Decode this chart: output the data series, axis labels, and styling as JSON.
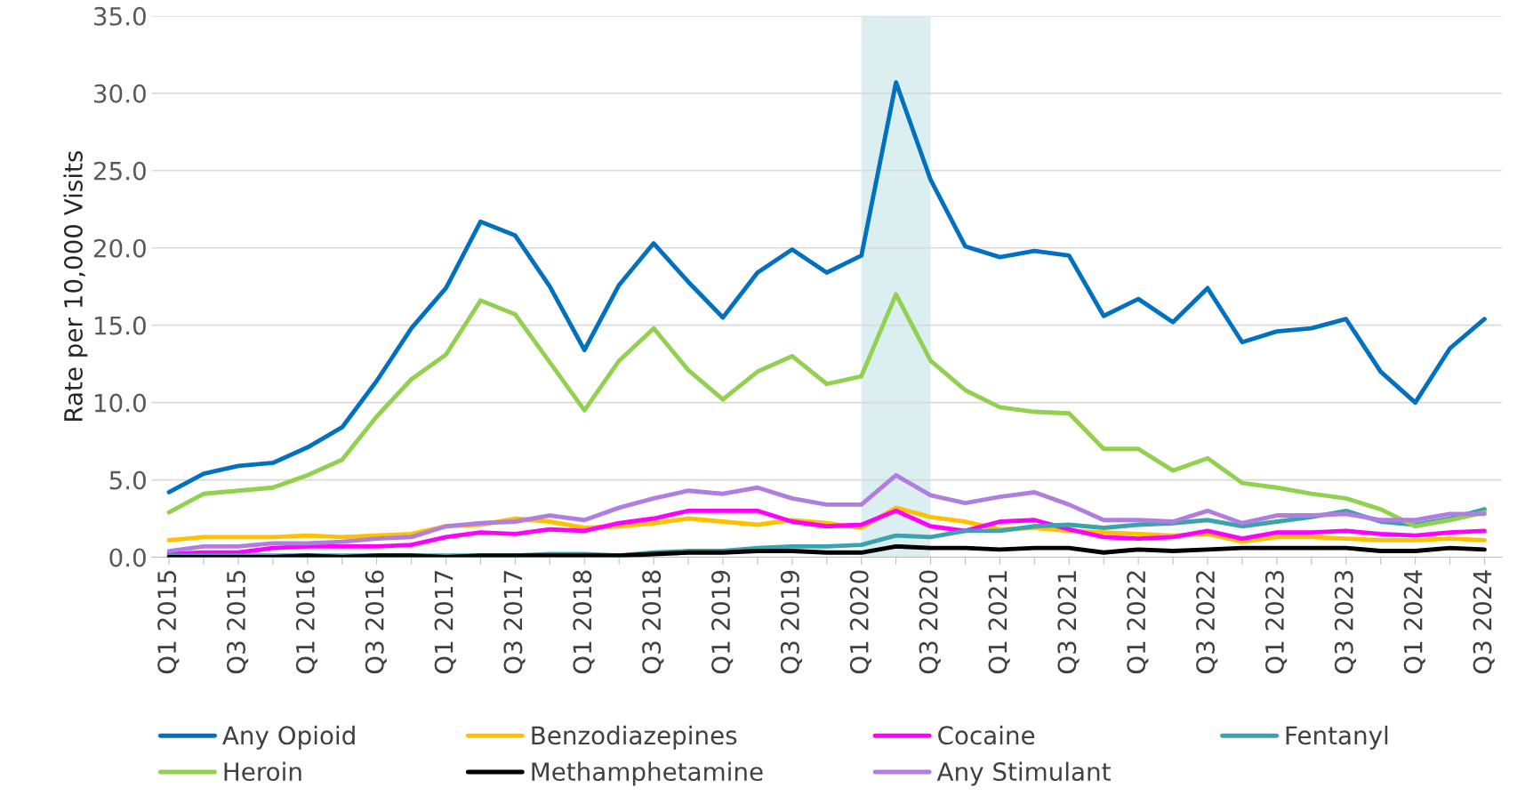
{
  "chart_data": {
    "type": "line",
    "ylabel": "Rate per 10,000 Visits",
    "categories": [
      "Q1 2015",
      null,
      "Q3 2015",
      null,
      "Q1 2016",
      null,
      "Q3 2016",
      null,
      "Q1 2017",
      null,
      "Q3 2017",
      null,
      "Q1 2018",
      null,
      "Q3 2018",
      null,
      "Q1 2019",
      null,
      "Q3 2019",
      null,
      "Q1 2020",
      null,
      "Q3 2020",
      null,
      "Q1 2021",
      null,
      "Q3 2021",
      null,
      "Q1 2022",
      null,
      "Q3 2022",
      null,
      "Q1 2023",
      null,
      "Q3 2023",
      null,
      "Q1 2024",
      null,
      "Q3 2024"
    ],
    "series": [
      {
        "name": "Any Opioid",
        "color": "#0070c0",
        "values": [
          4.2,
          5.4,
          5.9,
          6.1,
          7.1,
          8.4,
          11.4,
          14.8,
          17.4,
          21.7,
          20.8,
          17.5,
          13.4,
          17.6,
          20.3,
          17.8,
          15.5,
          18.4,
          19.9,
          18.4,
          19.5,
          30.7,
          24.4,
          20.1,
          19.4,
          19.8,
          19.5,
          15.6,
          16.7,
          15.2,
          17.4,
          13.9,
          14.6,
          14.8,
          15.4,
          12.0,
          10.0,
          13.5,
          15.4
        ]
      },
      {
        "name": "Benzodiazepines",
        "color": "#ffc000",
        "values": [
          1.1,
          1.3,
          1.3,
          1.3,
          1.4,
          1.3,
          1.4,
          1.5,
          2.0,
          2.1,
          2.5,
          2.3,
          1.9,
          2.0,
          2.2,
          2.5,
          2.3,
          2.1,
          2.4,
          2.2,
          1.9,
          3.2,
          2.6,
          2.3,
          1.8,
          1.9,
          1.7,
          1.6,
          1.5,
          1.4,
          1.5,
          1.0,
          1.3,
          1.3,
          1.2,
          1.1,
          1.1,
          1.2,
          1.1
        ]
      },
      {
        "name": "Cocaine",
        "color": "#ff00ff",
        "values": [
          0.2,
          0.3,
          0.3,
          0.6,
          0.7,
          0.7,
          0.7,
          0.8,
          1.3,
          1.6,
          1.5,
          1.8,
          1.7,
          2.2,
          2.5,
          3.0,
          3.0,
          3.0,
          2.3,
          2.0,
          2.1,
          3.0,
          2.0,
          1.7,
          2.3,
          2.4,
          1.8,
          1.3,
          1.2,
          1.3,
          1.7,
          1.2,
          1.6,
          1.6,
          1.7,
          1.5,
          1.4,
          1.6,
          1.7
        ]
      },
      {
        "name": "Fentanyl",
        "color": "#3ba3ad",
        "values": [
          0.1,
          0.1,
          0.1,
          0.1,
          0.1,
          0.1,
          0.1,
          0.1,
          0.1,
          0.1,
          0.1,
          0.2,
          0.2,
          0.1,
          0.3,
          0.4,
          0.4,
          0.6,
          0.7,
          0.7,
          0.8,
          1.4,
          1.3,
          1.7,
          1.7,
          2.0,
          2.1,
          1.9,
          2.1,
          2.2,
          2.4,
          2.0,
          2.3,
          2.6,
          3.0,
          2.3,
          2.1,
          2.5,
          3.1
        ]
      },
      {
        "name": "Heroin",
        "color": "#92d050",
        "values": [
          2.9,
          4.1,
          4.3,
          4.5,
          5.3,
          6.3,
          9.1,
          11.5,
          13.1,
          16.6,
          15.7,
          12.6,
          9.5,
          12.7,
          14.8,
          12.1,
          10.2,
          12.0,
          13.0,
          11.2,
          11.7,
          17.0,
          12.7,
          10.8,
          9.7,
          9.4,
          9.3,
          7.0,
          7.0,
          5.6,
          6.4,
          4.8,
          4.5,
          4.1,
          3.8,
          3.1,
          2.0,
          2.4,
          2.9
        ]
      },
      {
        "name": "Methamphetamine",
        "color": "#000000",
        "values": [
          0.0,
          0.0,
          0.0,
          0.0,
          0.1,
          0.0,
          0.1,
          0.1,
          0.0,
          0.1,
          0.1,
          0.1,
          0.1,
          0.1,
          0.2,
          0.3,
          0.3,
          0.4,
          0.4,
          0.3,
          0.3,
          0.7,
          0.6,
          0.6,
          0.5,
          0.6,
          0.6,
          0.3,
          0.5,
          0.4,
          0.5,
          0.6,
          0.6,
          0.6,
          0.6,
          0.4,
          0.4,
          0.6,
          0.5
        ]
      },
      {
        "name": "Any Stimulant",
        "color": "#b07ee0",
        "values": [
          0.4,
          0.7,
          0.7,
          0.9,
          0.9,
          1.0,
          1.2,
          1.3,
          2.0,
          2.2,
          2.3,
          2.7,
          2.4,
          3.2,
          3.8,
          4.3,
          4.1,
          4.5,
          3.8,
          3.4,
          3.4,
          5.3,
          4.0,
          3.5,
          3.9,
          4.2,
          3.4,
          2.4,
          2.4,
          2.3,
          3.0,
          2.2,
          2.7,
          2.7,
          2.8,
          2.4,
          2.4,
          2.8,
          2.8
        ]
      }
    ],
    "ylim": [
      0,
      35
    ],
    "yticks": [
      {
        "value": 0,
        "label": "0.0"
      },
      {
        "value": 5,
        "label": "5.0"
      },
      {
        "value": 10,
        "label": "10.0"
      },
      {
        "value": 15,
        "label": "15.0"
      },
      {
        "value": 20,
        "label": "20.0"
      },
      {
        "value": 25,
        "label": "25.0"
      },
      {
        "value": 30,
        "label": "30.0"
      },
      {
        "value": 35,
        "label": "35.0"
      }
    ],
    "bands": [
      {
        "axis": "x",
        "from": "Q1 2020",
        "to": "Q3 2020",
        "color": "#dbeef0"
      }
    ],
    "grid": "y",
    "legend": "bottom",
    "marker": "none",
    "line_style": "solid"
  }
}
